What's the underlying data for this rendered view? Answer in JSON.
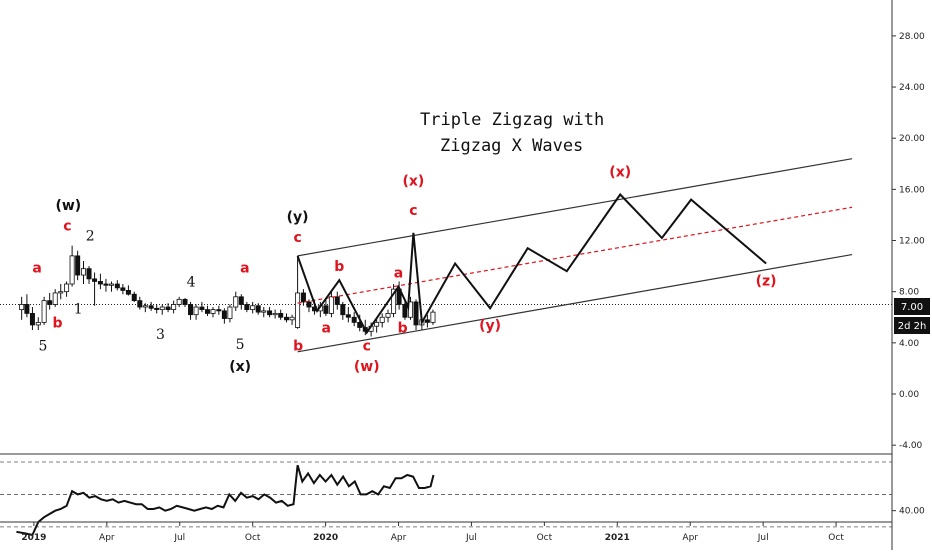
{
  "chart_data": {
    "type": "candlestick",
    "title_lines": [
      "Triple  Zigzag with",
      "Zigzag X Waves"
    ],
    "y_axis": {
      "ticks": [
        -4,
        0,
        4,
        8,
        12,
        16,
        20,
        24,
        28
      ],
      "tick_labels": [
        "-4.00",
        "0.00",
        "4.00",
        "8.00",
        "12.00",
        "16.00",
        "20.00",
        "24.00",
        "28.00"
      ],
      "range": [
        -5,
        30
      ]
    },
    "x_axis": {
      "tick_labels": [
        "2019",
        "Apr",
        "Jul",
        "Oct",
        "2020",
        "Apr",
        "Jul",
        "Oct",
        "2021",
        "Apr",
        "Jul",
        "Oct"
      ],
      "ticks_t": [
        2019.0,
        2019.25,
        2019.5,
        2019.75,
        2020.0,
        2020.25,
        2020.5,
        2020.75,
        2021.0,
        2021.25,
        2021.5,
        2021.75
      ],
      "bold_labels": [
        "2019",
        "2020",
        "2021"
      ]
    },
    "price_marker": {
      "label": "7.00",
      "value": 7.0
    },
    "time_marker": {
      "label": "2d 2h"
    },
    "candles": [
      [
        2018.958,
        6.6,
        7.6,
        5.8,
        7.0
      ],
      [
        2018.976,
        7.0,
        7.8,
        6.0,
        6.3
      ],
      [
        2018.995,
        6.3,
        6.8,
        5.0,
        5.4
      ],
      [
        2019.015,
        5.4,
        6.0,
        5.0,
        5.6
      ],
      [
        2019.035,
        5.6,
        7.6,
        5.4,
        7.3
      ],
      [
        2019.054,
        7.3,
        7.9,
        6.6,
        7.0
      ],
      [
        2019.073,
        7.0,
        8.2,
        6.8,
        7.9
      ],
      [
        2019.092,
        7.9,
        8.6,
        7.4,
        8.0
      ],
      [
        2019.112,
        8.0,
        8.8,
        7.6,
        8.6
      ],
      [
        2019.131,
        8.6,
        11.6,
        8.4,
        10.8
      ],
      [
        2019.15,
        10.8,
        11.2,
        8.9,
        9.3
      ],
      [
        2019.17,
        9.3,
        10.4,
        8.6,
        9.8
      ],
      [
        2019.189,
        9.8,
        10.0,
        8.6,
        9.0
      ],
      [
        2019.208,
        9.0,
        9.5,
        6.9,
        8.8
      ],
      [
        2019.228,
        8.8,
        9.4,
        8.2,
        8.6
      ],
      [
        2019.247,
        8.6,
        9.0,
        8.0,
        8.5
      ],
      [
        2019.266,
        8.5,
        8.8,
        8.0,
        8.6
      ],
      [
        2019.286,
        8.6,
        8.9,
        8.1,
        8.3
      ],
      [
        2019.305,
        8.3,
        8.6,
        7.8,
        8.1
      ],
      [
        2019.324,
        8.1,
        8.5,
        7.7,
        7.8
      ],
      [
        2019.344,
        7.8,
        8.0,
        7.2,
        7.3
      ],
      [
        2019.363,
        7.3,
        7.6,
        6.6,
        6.8
      ],
      [
        2019.382,
        6.8,
        7.1,
        6.4,
        6.9
      ],
      [
        2019.402,
        6.9,
        7.2,
        6.5,
        6.7
      ],
      [
        2019.421,
        6.7,
        7.0,
        6.3,
        6.6
      ],
      [
        2019.44,
        6.6,
        7.0,
        6.2,
        6.8
      ],
      [
        2019.46,
        6.8,
        7.1,
        6.4,
        6.6
      ],
      [
        2019.479,
        6.6,
        7.3,
        6.3,
        7.0
      ],
      [
        2019.498,
        7.0,
        7.6,
        6.8,
        7.4
      ],
      [
        2019.518,
        7.4,
        7.5,
        6.8,
        7.0
      ],
      [
        2019.537,
        7.0,
        7.2,
        5.8,
        6.2
      ],
      [
        2019.556,
        6.2,
        7.0,
        5.8,
        6.8
      ],
      [
        2019.576,
        6.8,
        7.2,
        6.4,
        6.6
      ],
      [
        2019.595,
        6.6,
        6.9,
        6.1,
        6.3
      ],
      [
        2019.614,
        6.3,
        6.8,
        6.0,
        6.6
      ],
      [
        2019.634,
        6.6,
        6.9,
        6.2,
        6.5
      ],
      [
        2019.653,
        6.5,
        6.7,
        5.5,
        5.9
      ],
      [
        2019.672,
        5.9,
        7.0,
        5.6,
        6.8
      ],
      [
        2019.692,
        6.8,
        8.0,
        6.5,
        7.6
      ],
      [
        2019.711,
        7.6,
        7.8,
        6.6,
        7.0
      ],
      [
        2019.73,
        7.0,
        7.2,
        6.4,
        6.6
      ],
      [
        2019.75,
        6.6,
        7.2,
        6.3,
        6.9
      ],
      [
        2019.769,
        6.9,
        7.1,
        6.2,
        6.4
      ],
      [
        2019.788,
        6.4,
        6.8,
        6.0,
        6.5
      ],
      [
        2019.808,
        6.5,
        6.8,
        6.0,
        6.2
      ],
      [
        2019.827,
        6.2,
        6.6,
        5.9,
        6.3
      ],
      [
        2019.846,
        6.3,
        6.6,
        5.8,
        6.0
      ],
      [
        2019.866,
        6.0,
        6.3,
        5.6,
        5.8
      ],
      [
        2019.885,
        5.8,
        6.2,
        5.4,
        6.0
      ],
      [
        2019.904,
        5.2,
        10.8,
        5.1,
        7.9
      ],
      [
        2019.924,
        7.9,
        8.2,
        6.9,
        7.2
      ],
      [
        2019.943,
        7.2,
        7.4,
        6.4,
        6.8
      ],
      [
        2019.962,
        6.8,
        7.4,
        6.2,
        6.5
      ],
      [
        2019.982,
        6.5,
        7.2,
        6.0,
        6.9
      ],
      [
        2020.001,
        6.9,
        7.4,
        6.1,
        6.3
      ],
      [
        2020.02,
        6.3,
        8.0,
        6.0,
        7.6
      ],
      [
        2020.04,
        7.6,
        8.0,
        6.6,
        7.0
      ],
      [
        2020.059,
        7.0,
        7.2,
        5.8,
        6.2
      ],
      [
        2020.078,
        6.2,
        6.8,
        5.6,
        6.0
      ],
      [
        2020.098,
        6.0,
        6.4,
        5.3,
        5.6
      ],
      [
        2020.117,
        5.6,
        6.2,
        4.9,
        5.2
      ],
      [
        2020.136,
        5.2,
        5.8,
        4.6,
        4.9
      ],
      [
        2020.156,
        4.9,
        5.6,
        4.5,
        5.3
      ],
      [
        2020.175,
        5.3,
        5.9,
        4.8,
        5.6
      ],
      [
        2020.194,
        5.6,
        6.3,
        5.2,
        6.0
      ],
      [
        2020.214,
        6.0,
        6.6,
        5.6,
        6.3
      ],
      [
        2020.233,
        6.3,
        8.6,
        6.0,
        8.2
      ],
      [
        2020.252,
        8.2,
        8.8,
        6.6,
        7.0
      ],
      [
        2020.272,
        7.0,
        7.4,
        5.8,
        6.0
      ],
      [
        2020.291,
        6.0,
        7.6,
        5.8,
        7.2
      ],
      [
        2020.31,
        7.2,
        7.4,
        5.0,
        5.4
      ],
      [
        2020.33,
        5.4,
        6.0,
        5.0,
        5.8
      ],
      [
        2020.349,
        5.8,
        6.2,
        5.2,
        5.6
      ],
      [
        2020.368,
        5.6,
        6.6,
        5.4,
        6.4
      ]
    ],
    "wave_path": [
      [
        2019.904,
        10.8
      ],
      [
        2019.971,
        6.5
      ],
      [
        2020.047,
        8.9
      ],
      [
        2020.141,
        4.8
      ],
      [
        2020.25,
        8.4
      ],
      [
        2020.283,
        6.8
      ],
      [
        2020.301,
        12.6
      ],
      [
        2020.33,
        5.6
      ],
      [
        2020.444,
        10.2
      ],
      [
        2020.564,
        6.7
      ],
      [
        2020.693,
        11.4
      ],
      [
        2020.827,
        9.6
      ],
      [
        2021.01,
        15.6
      ],
      [
        2021.153,
        12.2
      ],
      [
        2021.253,
        15.2
      ],
      [
        2021.51,
        10.2
      ]
    ],
    "channel_upper": [
      [
        2019.904,
        10.8
      ],
      [
        2021.805,
        18.4
      ]
    ],
    "channel_lower": [
      [
        2019.904,
        3.3
      ],
      [
        2021.805,
        10.9
      ]
    ],
    "channel_mid": [
      [
        2019.904,
        7.1
      ],
      [
        2021.805,
        14.6
      ]
    ],
    "wave_labels": [
      {
        "text": "(w)",
        "t": 2019.118,
        "v": 14.4,
        "color": "black"
      },
      {
        "text": "c",
        "t": 2019.115,
        "v": 12.8,
        "color": "red"
      },
      {
        "text": "2",
        "t": 2019.193,
        "v": 12.0,
        "color": "black"
      },
      {
        "text": "a",
        "t": 2019.011,
        "v": 9.5,
        "color": "red"
      },
      {
        "text": "b",
        "t": 2019.081,
        "v": 5.2,
        "color": "red"
      },
      {
        "text": "1",
        "t": 2019.152,
        "v": 6.3,
        "color": "black"
      },
      {
        "text": "5",
        "t": 2019.031,
        "v": 3.4,
        "color": "black"
      },
      {
        "text": "3",
        "t": 2019.434,
        "v": 4.3,
        "color": "black"
      },
      {
        "text": "4",
        "t": 2019.539,
        "v": 8.4,
        "color": "black"
      },
      {
        "text": "a",
        "t": 2019.723,
        "v": 9.5,
        "color": "red"
      },
      {
        "text": "5",
        "t": 2019.707,
        "v": 3.5,
        "color": "black"
      },
      {
        "text": "(x)",
        "t": 2019.707,
        "v": 1.8,
        "color": "black"
      },
      {
        "text": "(y)",
        "t": 2019.904,
        "v": 13.5,
        "color": "black"
      },
      {
        "text": "c",
        "t": 2019.904,
        "v": 11.9,
        "color": "red"
      },
      {
        "text": "b",
        "t": 2019.906,
        "v": 3.4,
        "color": "red"
      },
      {
        "text": "a",
        "t": 2020.002,
        "v": 4.8,
        "color": "red"
      },
      {
        "text": "b",
        "t": 2020.047,
        "v": 9.6,
        "color": "red"
      },
      {
        "text": "c",
        "t": 2020.141,
        "v": 3.4,
        "color": "red"
      },
      {
        "text": "(w)",
        "t": 2020.141,
        "v": 1.8,
        "color": "red"
      },
      {
        "text": "a",
        "t": 2020.25,
        "v": 9.1,
        "color": "red"
      },
      {
        "text": "b",
        "t": 2020.264,
        "v": 4.8,
        "color": "red"
      },
      {
        "text": "c",
        "t": 2020.301,
        "v": 14.0,
        "color": "red"
      },
      {
        "text": "(x)",
        "t": 2020.301,
        "v": 16.3,
        "color": "red"
      },
      {
        "text": "(y)",
        "t": 2020.564,
        "v": 5.0,
        "color": "red"
      },
      {
        "text": "(x)",
        "t": 2021.01,
        "v": 17.0,
        "color": "red"
      },
      {
        "text": "(z)",
        "t": 2021.51,
        "v": 8.5,
        "color": "red"
      }
    ],
    "indicator": {
      "levels": [
        30,
        50,
        70
      ],
      "tick_labels": [
        "40.00"
      ],
      "tick_values": [
        40
      ],
      "range": [
        25,
        80
      ],
      "series": [
        [
          2018.94,
          27
        ],
        [
          2018.97,
          26
        ],
        [
          2018.995,
          25
        ],
        [
          2019.015,
          33
        ],
        [
          2019.035,
          36
        ],
        [
          2019.054,
          38
        ],
        [
          2019.073,
          40
        ],
        [
          2019.092,
          41
        ],
        [
          2019.112,
          43
        ],
        [
          2019.131,
          52
        ],
        [
          2019.15,
          50
        ],
        [
          2019.17,
          51
        ],
        [
          2019.19,
          48
        ],
        [
          2019.21,
          49
        ],
        [
          2019.23,
          47
        ],
        [
          2019.25,
          46
        ],
        [
          2019.27,
          47
        ],
        [
          2019.29,
          45
        ],
        [
          2019.31,
          46
        ],
        [
          2019.33,
          45
        ],
        [
          2019.35,
          44
        ],
        [
          2019.37,
          44
        ],
        [
          2019.39,
          41
        ],
        [
          2019.41,
          41
        ],
        [
          2019.43,
          42
        ],
        [
          2019.45,
          40
        ],
        [
          2019.47,
          41
        ],
        [
          2019.49,
          43
        ],
        [
          2019.51,
          42
        ],
        [
          2019.53,
          41
        ],
        [
          2019.55,
          40
        ],
        [
          2019.57,
          41
        ],
        [
          2019.59,
          42
        ],
        [
          2019.61,
          41
        ],
        [
          2019.63,
          43
        ],
        [
          2019.65,
          42
        ],
        [
          2019.67,
          50
        ],
        [
          2019.69,
          46
        ],
        [
          2019.71,
          51
        ],
        [
          2019.73,
          48
        ],
        [
          2019.75,
          49
        ],
        [
          2019.77,
          47
        ],
        [
          2019.79,
          50
        ],
        [
          2019.81,
          48
        ],
        [
          2019.83,
          45
        ],
        [
          2019.85,
          46
        ],
        [
          2019.87,
          43
        ],
        [
          2019.89,
          44
        ],
        [
          2019.904,
          68
        ],
        [
          2019.92,
          58
        ],
        [
          2019.94,
          63
        ],
        [
          2019.96,
          57
        ],
        [
          2019.98,
          62
        ],
        [
          2020.0,
          58
        ],
        [
          2020.02,
          62
        ],
        [
          2020.04,
          56
        ],
        [
          2020.06,
          61
        ],
        [
          2020.08,
          55
        ],
        [
          2020.1,
          58
        ],
        [
          2020.12,
          50
        ],
        [
          2020.14,
          50
        ],
        [
          2020.16,
          52
        ],
        [
          2020.18,
          50
        ],
        [
          2020.2,
          55
        ],
        [
          2020.22,
          54
        ],
        [
          2020.24,
          60
        ],
        [
          2020.26,
          60
        ],
        [
          2020.28,
          62
        ],
        [
          2020.3,
          61
        ],
        [
          2020.32,
          54
        ],
        [
          2020.34,
          54
        ],
        [
          2020.36,
          55
        ],
        [
          2020.37,
          62
        ]
      ]
    }
  }
}
